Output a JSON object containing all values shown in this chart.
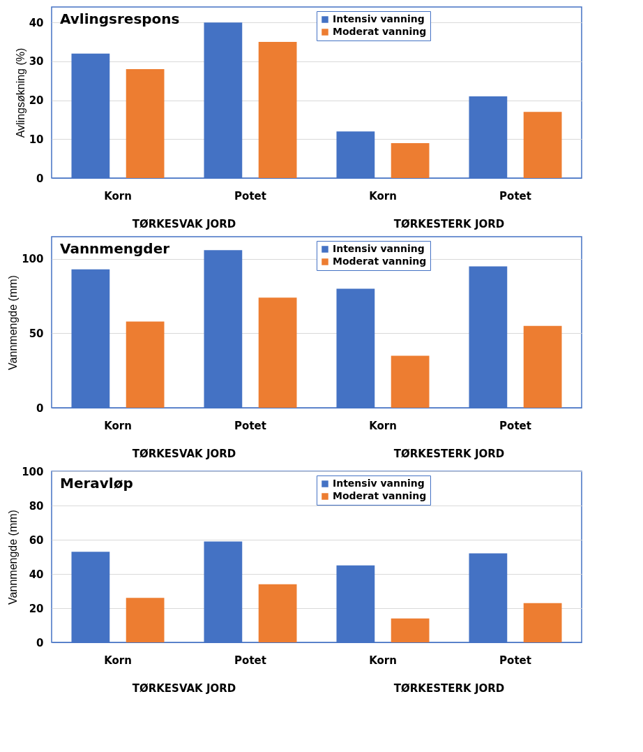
{
  "chart_data": [
    {
      "type": "bar",
      "title": "Avlingsrespons",
      "ylabel": "Avlingsøkning (%)",
      "categories": [
        "Korn",
        "Potet",
        "Korn",
        "Potet"
      ],
      "annotations": [
        "TØRKESVAK JORD",
        "TØRKESTERK JORD"
      ],
      "series": [
        {
          "name": "Intensiv vanning",
          "color": "#4472c4",
          "values": [
            32,
            40,
            12,
            21
          ]
        },
        {
          "name": "Moderat vanning",
          "color": "#ed7d31",
          "values": [
            28,
            35,
            9,
            17
          ]
        }
      ],
      "ylim": [
        0,
        44
      ],
      "yticks": [
        0,
        10,
        20,
        30,
        40
      ],
      "grid": "y",
      "legend": "top right"
    },
    {
      "type": "bar",
      "title": "Vannmengder",
      "ylabel": "Vannmengde (mm)",
      "categories": [
        "Korn",
        "Potet",
        "Korn",
        "Potet"
      ],
      "annotations": [
        "TØRKESVAK JORD",
        "TØRKESTERK JORD"
      ],
      "series": [
        {
          "name": "Intensiv vanning",
          "color": "#4472c4",
          "values": [
            93,
            106,
            80,
            95
          ]
        },
        {
          "name": "Moderat vanning",
          "color": "#ed7d31",
          "values": [
            58,
            74,
            35,
            55
          ]
        }
      ],
      "ylim": [
        0,
        115
      ],
      "yticks": [
        0,
        50,
        100
      ],
      "grid": "y",
      "legend": "top right"
    },
    {
      "type": "bar",
      "title": "Meravløp",
      "ylabel": "Vannmengde (mm)",
      "categories": [
        "Korn",
        "Potet",
        "Korn",
        "Potet"
      ],
      "annotations": [
        "TØRKESVAK JORD",
        "TØRKESTERK JORD"
      ],
      "series": [
        {
          "name": "Intensiv vanning",
          "color": "#4472c4",
          "values": [
            53,
            59,
            45,
            52
          ]
        },
        {
          "name": "Moderat vanning",
          "color": "#ed7d31",
          "values": [
            26,
            34,
            14,
            23
          ]
        }
      ],
      "ylim": [
        0,
        100
      ],
      "yticks": [
        0,
        20,
        40,
        60,
        80,
        100
      ],
      "grid": "y",
      "legend": "top right"
    }
  ]
}
